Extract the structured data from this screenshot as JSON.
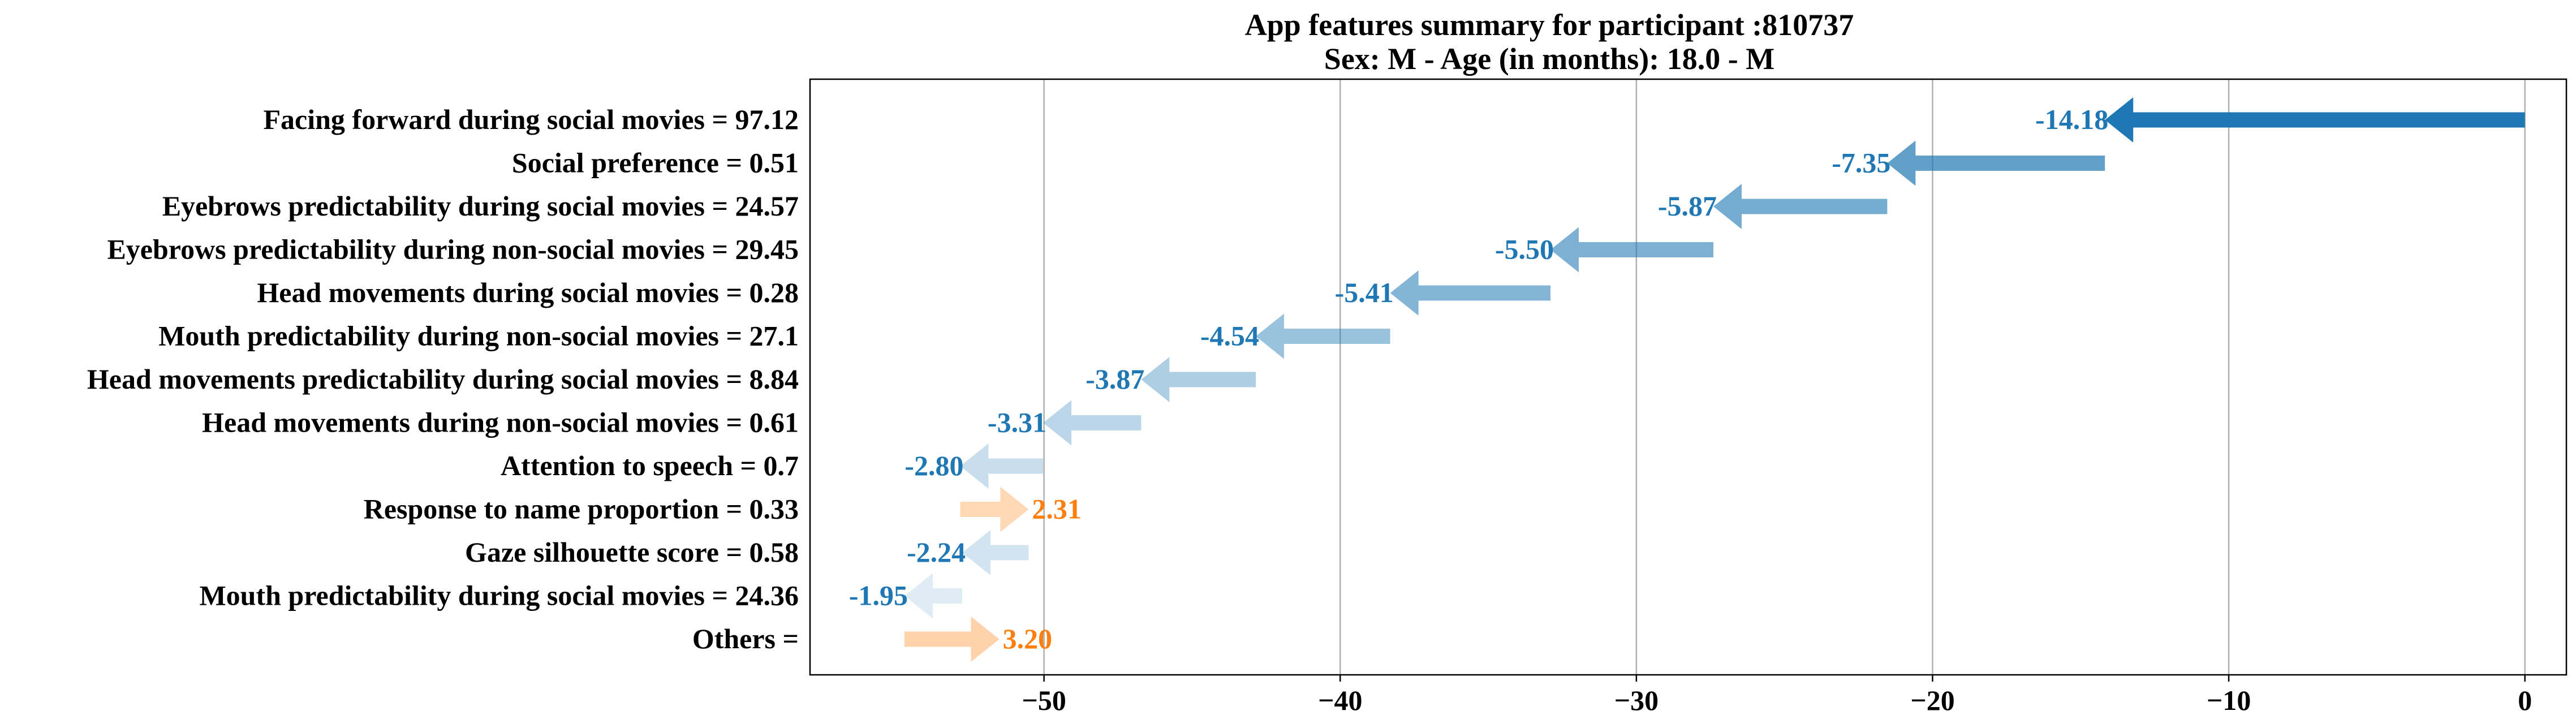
{
  "chart_data": {
    "type": "bar",
    "title": "App features summary for participant :810737",
    "subtitle": "Sex: M - Age (in months): 18.0 - M",
    "xlim": [
      -57.9,
      1.4
    ],
    "xticks": [
      -50,
      -40,
      -30,
      -20,
      -10,
      0
    ],
    "xtick_labels": [
      "−50",
      "−40",
      "−30",
      "−20",
      "−10",
      "0"
    ],
    "grid": "vertical",
    "colors": {
      "negative": "#1f77b4",
      "positive": "#ff7f0e"
    },
    "features": [
      {
        "label": "Facing forward during social movies = 97.12",
        "value": -14.18,
        "value_label": "-14.18",
        "start": 0.0,
        "end": -14.18,
        "opacity": 1.0
      },
      {
        "label": "Social preference = 0.51",
        "value": -7.35,
        "value_label": "-7.35",
        "start": -14.18,
        "end": -21.53,
        "opacity": 0.7
      },
      {
        "label": "Eyebrows predictability during social movies = 24.57",
        "value": -5.87,
        "value_label": "-5.87",
        "start": -21.53,
        "end": -27.4,
        "opacity": 0.62
      },
      {
        "label": "Eyebrows predictability during non-social movies = 29.45",
        "value": -5.5,
        "value_label": "-5.50",
        "start": -27.4,
        "end": -32.9,
        "opacity": 0.58
      },
      {
        "label": "Head movements during social movies = 0.28",
        "value": -5.41,
        "value_label": "-5.41",
        "start": -32.9,
        "end": -38.31,
        "opacity": 0.55
      },
      {
        "label": "Mouth predictability during non-social movies = 27.1",
        "value": -4.54,
        "value_label": "-4.54",
        "start": -38.31,
        "end": -42.85,
        "opacity": 0.45
      },
      {
        "label": "Head movements predictability during social movies = 8.84",
        "value": -3.87,
        "value_label": "-3.87",
        "start": -42.85,
        "end": -46.72,
        "opacity": 0.36
      },
      {
        "label": "Head movements during non-social movies = 0.61",
        "value": -3.31,
        "value_label": "-3.31",
        "start": -46.72,
        "end": -50.03,
        "opacity": 0.3
      },
      {
        "label": "Attention to speech = 0.7",
        "value": -2.8,
        "value_label": "-2.80",
        "start": -50.03,
        "end": -52.83,
        "opacity": 0.24
      },
      {
        "label": "Response to name proportion = 0.33",
        "value": 2.31,
        "value_label": "2.31",
        "start": -52.83,
        "end": -50.52,
        "opacity": 0.3
      },
      {
        "label": "Gaze silhouette score = 0.58",
        "value": -2.24,
        "value_label": "-2.24",
        "start": -50.52,
        "end": -52.76,
        "opacity": 0.2
      },
      {
        "label": "Mouth predictability during social movies = 24.36",
        "value": -1.95,
        "value_label": "-1.95",
        "start": -52.76,
        "end": -54.71,
        "opacity": 0.14
      },
      {
        "label": "Others = ",
        "value": 3.2,
        "value_label": "3.20",
        "start": -54.71,
        "end": -51.51,
        "opacity": 0.35
      }
    ]
  }
}
